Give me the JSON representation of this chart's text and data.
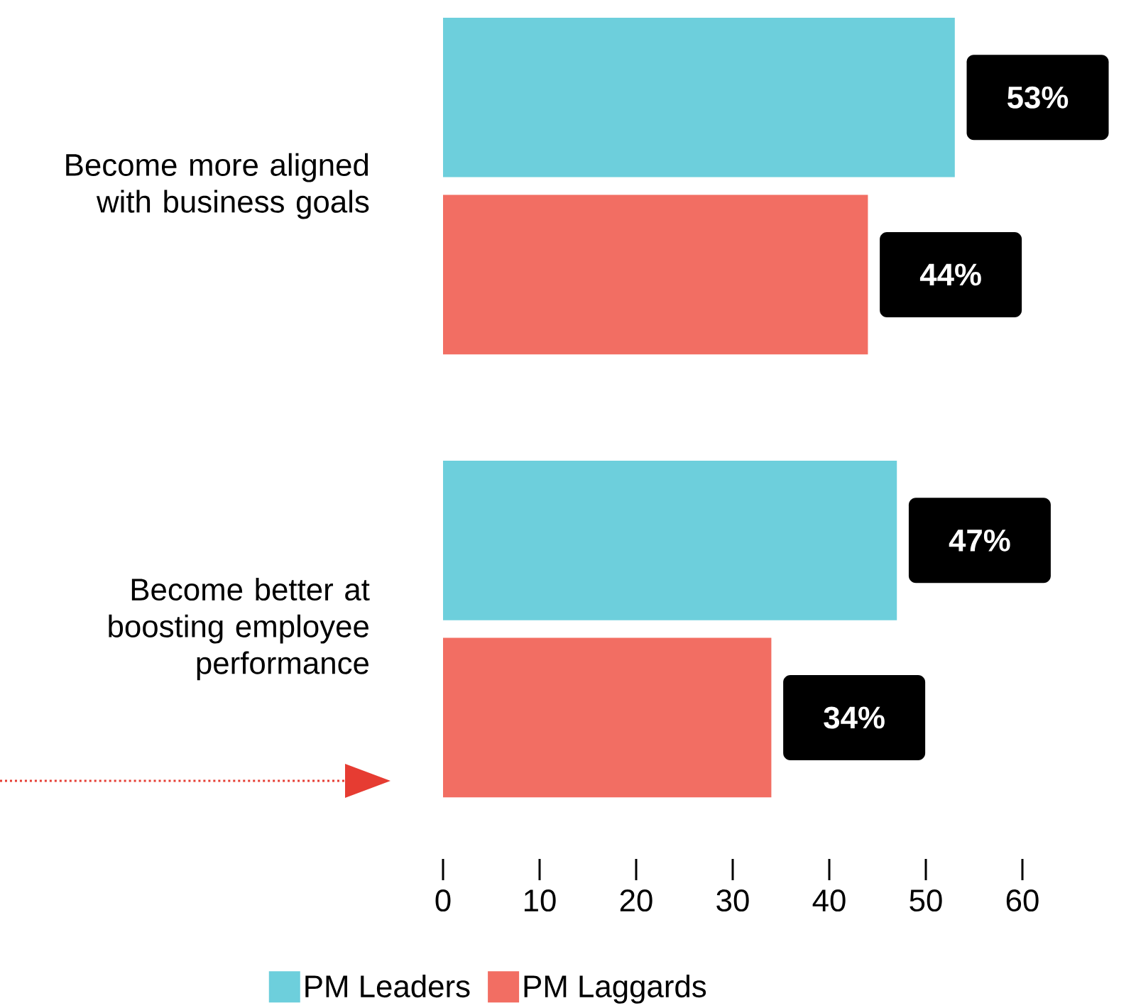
{
  "chart_data": {
    "type": "bar",
    "orientation": "horizontal",
    "categories": [
      "Become more aligned with business goals",
      "Become better at boosting employee performance"
    ],
    "series": [
      {
        "name": "PM Leaders",
        "color": "#6dcfdc",
        "values": [
          53,
          47
        ],
        "value_labels": [
          "53%",
          "47%"
        ]
      },
      {
        "name": "PM Laggards",
        "color": "#f26e63",
        "values": [
          44,
          34
        ],
        "value_labels": [
          "44%",
          "34%"
        ]
      }
    ],
    "xlim": [
      0,
      60
    ],
    "xticks": [
      0,
      10,
      20,
      30,
      40,
      50,
      60
    ],
    "grid": false,
    "legend": "bottom"
  }
}
